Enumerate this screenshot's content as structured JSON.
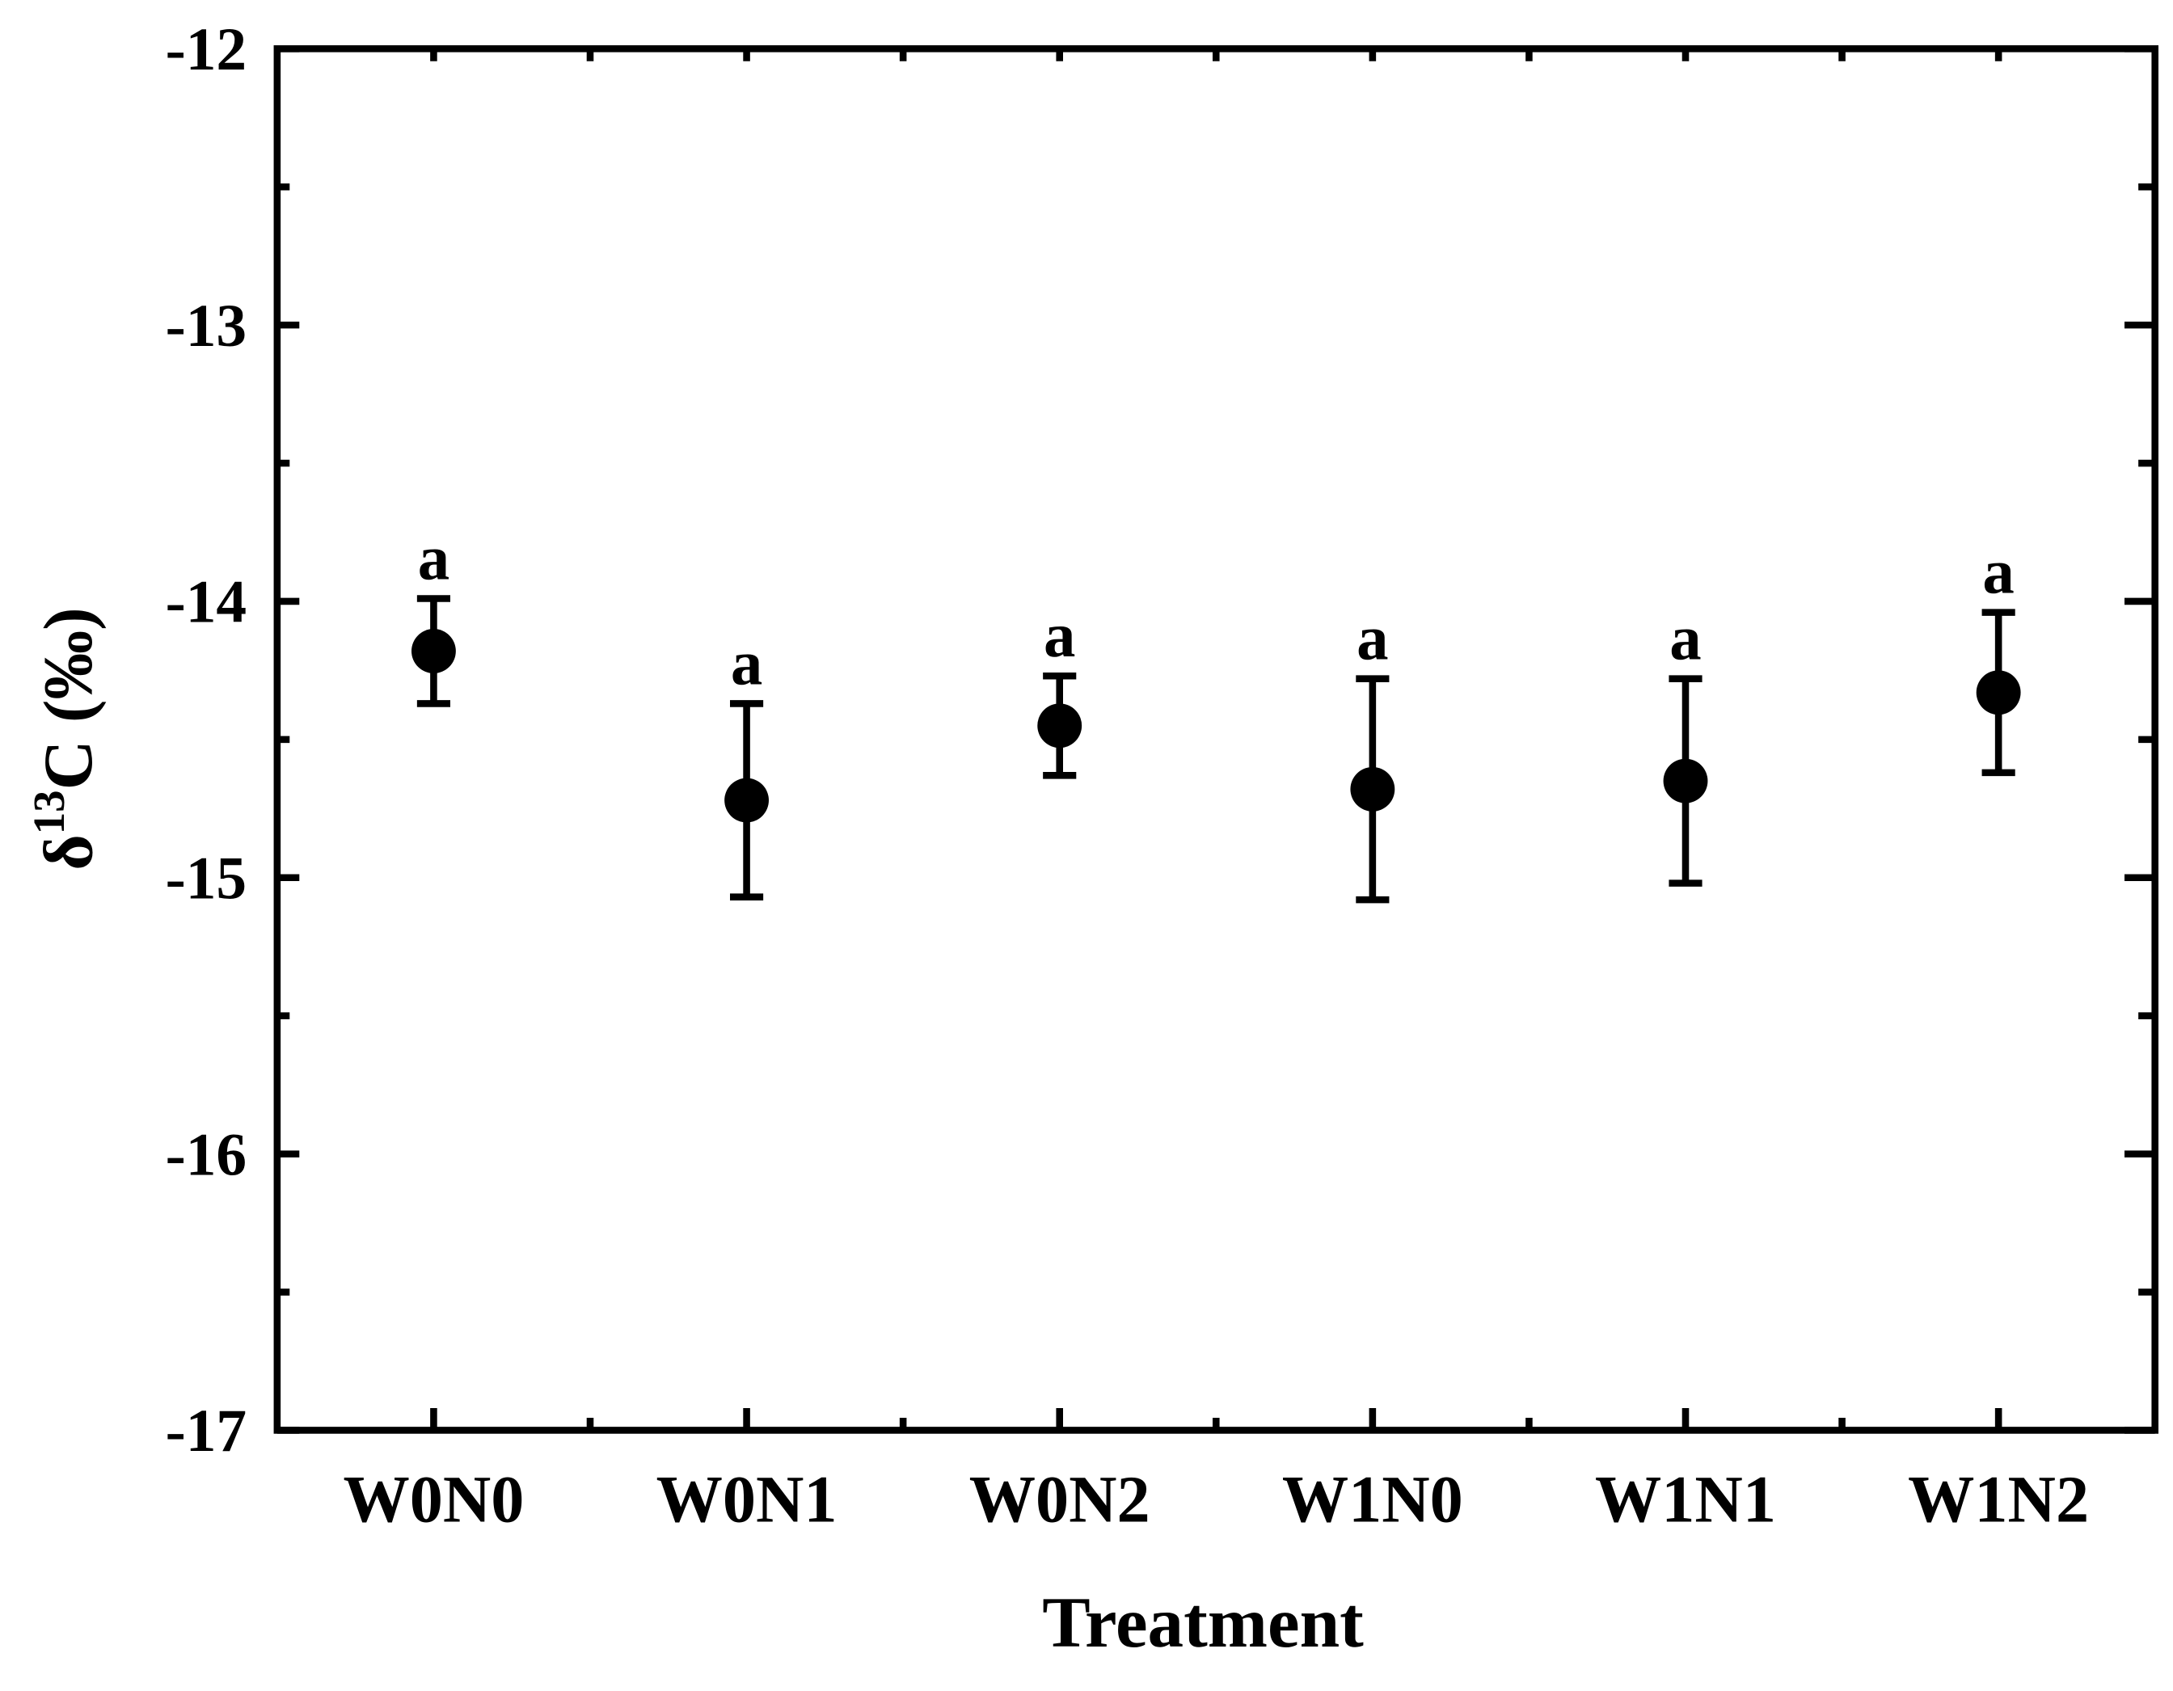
{
  "chart_data": {
    "type": "errorbar",
    "xlabel": "Treatment",
    "ylabel": [
      "δ",
      "13",
      "C (‰)"
    ],
    "categories": [
      "W0N0",
      "W0N1",
      "W0N2",
      "W1N0",
      "W1N1",
      "W1N2"
    ],
    "series": [
      {
        "color": "#000000",
        "values": [
          -14.18,
          -14.72,
          -14.45,
          -14.68,
          -14.65,
          -14.33
        ],
        "errors": [
          0.19,
          0.35,
          0.18,
          0.4,
          0.37,
          0.29
        ],
        "letters": [
          "a",
          "a",
          "a",
          "a",
          "a",
          "a"
        ]
      }
    ],
    "ylim": [
      -17,
      -12
    ],
    "yticks": [
      -17,
      -16,
      -15,
      -14,
      -13,
      -12
    ]
  }
}
